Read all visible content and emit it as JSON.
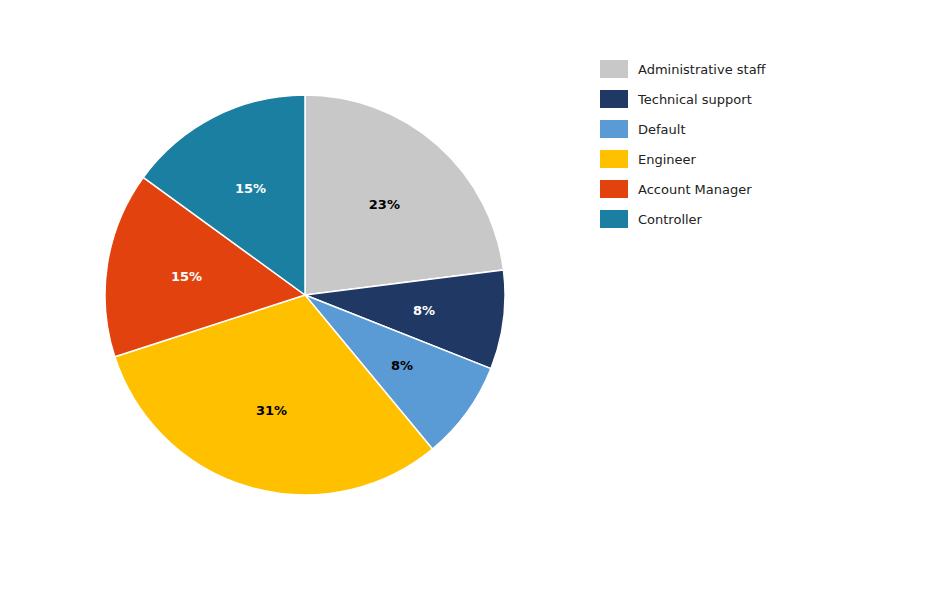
{
  "chart_data": {
    "type": "pie",
    "categories": [
      "Administrative staff",
      "Technical support",
      "Default",
      "Engineer",
      "Account Manager",
      "Controller"
    ],
    "values": [
      23,
      8,
      8,
      31,
      15,
      15
    ],
    "value_labels": [
      "23%",
      "8%",
      "8%",
      "31%",
      "15%",
      "15%"
    ],
    "colors": [
      "#C8C8C8",
      "#1F3864",
      "#5B9BD5",
      "#FFC000",
      "#E2420E",
      "#1A7FA0"
    ],
    "data_labels": true,
    "legend": "right"
  }
}
